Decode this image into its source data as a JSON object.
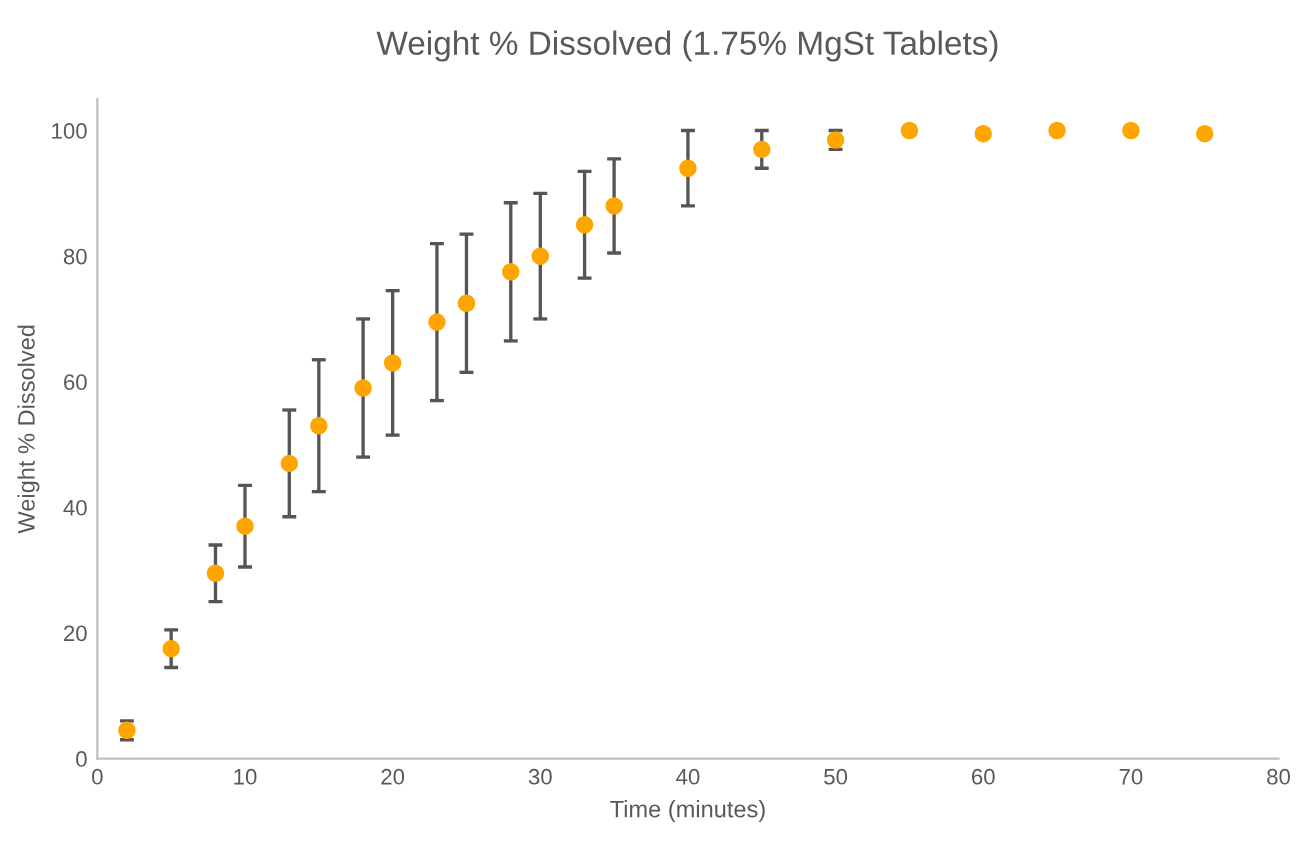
{
  "chart_data": {
    "type": "scatter",
    "title": "Weight % Dissolved (1.75% MgSt Tablets)",
    "xlabel": "Time (minutes)",
    "ylabel": "Weight % Dissolved",
    "x": [
      2,
      5,
      8,
      10,
      13,
      15,
      18,
      20,
      23,
      25,
      28,
      30,
      33,
      35,
      40,
      45,
      50,
      55,
      60,
      65,
      70,
      75
    ],
    "series": [
      {
        "color": "#ffa500",
        "values": [
          4.5,
          17.5,
          29.5,
          37,
          47,
          53,
          59,
          63,
          69.5,
          72.5,
          77.5,
          80,
          85,
          88,
          94,
          97,
          98.5,
          100,
          99.5,
          100,
          100,
          99.5
        ],
        "errors": [
          1.5,
          3,
          4.5,
          6.5,
          8.5,
          10.5,
          11,
          11.5,
          12.5,
          11,
          11,
          10,
          8.5,
          7.5,
          6,
          3,
          1.5,
          null,
          null,
          null,
          null,
          null
        ]
      }
    ],
    "xlim": [
      0,
      80
    ],
    "xticks": [
      0,
      10,
      20,
      30,
      40,
      50,
      60,
      70,
      80
    ],
    "ylim": [
      0,
      105
    ],
    "yticks": [
      0,
      20,
      40,
      60,
      80,
      100
    ],
    "grid": false,
    "legend": false,
    "marker": "circle"
  }
}
